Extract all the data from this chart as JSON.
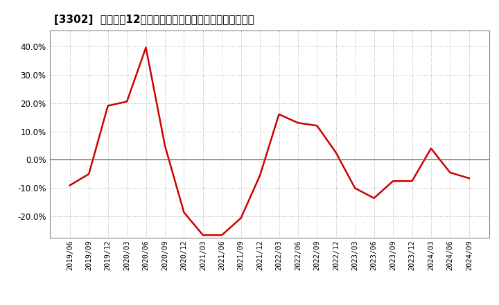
{
  "title": "[3302]  売上高の12か月移動合計の対前年同期増減率の推移",
  "line_color": "#cc0000",
  "line_width": 1.8,
  "background_color": "#ffffff",
  "plot_bg_color": "#ffffff",
  "grid_color": "#999999",
  "ylim": [
    -0.275,
    0.455
  ],
  "yticks": [
    -0.2,
    -0.1,
    0.0,
    0.1,
    0.2,
    0.3,
    0.4
  ],
  "dates": [
    "2019/06",
    "2019/09",
    "2019/12",
    "2020/03",
    "2020/06",
    "2020/09",
    "2020/12",
    "2021/03",
    "2021/06",
    "2021/09",
    "2021/12",
    "2022/03",
    "2022/06",
    "2022/09",
    "2022/12",
    "2023/03",
    "2023/06",
    "2023/09",
    "2023/12",
    "2024/03",
    "2024/06",
    "2024/09"
  ],
  "values": [
    -0.09,
    -0.05,
    0.19,
    0.205,
    0.395,
    0.05,
    -0.185,
    -0.265,
    -0.265,
    -0.205,
    -0.055,
    0.16,
    0.13,
    0.12,
    0.025,
    -0.1,
    -0.135,
    -0.075,
    -0.075,
    0.04,
    -0.045,
    -0.065
  ]
}
